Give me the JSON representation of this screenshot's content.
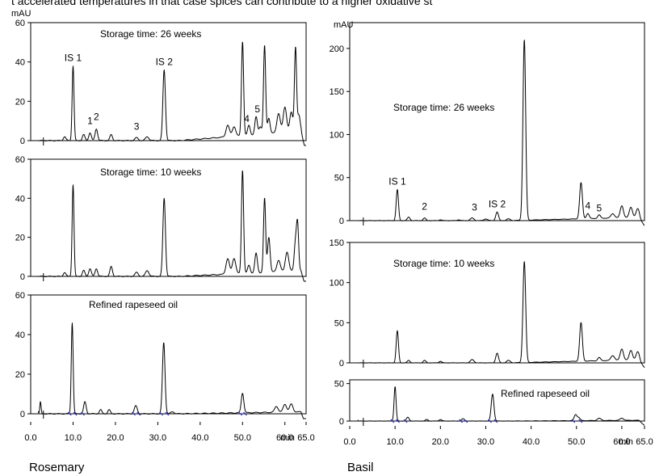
{
  "header_text": "t accelerated temperatures in that case spices can contribute to a higher oxidative st",
  "y_unit": "mAU",
  "x_unit": "min",
  "colors": {
    "trace": "#000000",
    "integration": "#2a2ad0",
    "frame": "#000000"
  },
  "chart_data": [
    {
      "type": "line",
      "group": "Rosemary",
      "panels": [
        {
          "title": "Storage time: 26 weeks",
          "ylim": [
            0,
            60
          ],
          "yticks": [
            "0",
            "20",
            "40",
            "60"
          ],
          "peak_labels": [
            {
              "text": "IS 1",
              "x": 10.0,
              "y": 38
            },
            {
              "text": "1",
              "x": 14.0,
              "y": 6
            },
            {
              "text": "2",
              "x": 15.5,
              "y": 8
            },
            {
              "text": "IS 2",
              "x": 31.5,
              "y": 36
            },
            {
              "text": "3",
              "x": 25.0,
              "y": 3
            },
            {
              "text": "4",
              "x": 51.0,
              "y": 7
            },
            {
              "text": "5",
              "x": 53.5,
              "y": 12
            }
          ],
          "peaks": [
            [
              8.0,
              2,
              0.3
            ],
            [
              10.0,
              38,
              0.22
            ],
            [
              12.5,
              3,
              0.3
            ],
            [
              14.0,
              4,
              0.3
            ],
            [
              15.5,
              6,
              0.3
            ],
            [
              19.0,
              3,
              0.3
            ],
            [
              25.0,
              1.5,
              0.4
            ],
            [
              27.5,
              2,
              0.4
            ],
            [
              31.5,
              36,
              0.3
            ],
            [
              46.5,
              6,
              0.4
            ],
            [
              48.0,
              5,
              0.4
            ],
            [
              50.0,
              48,
              0.25
            ],
            [
              51.5,
              5,
              0.3
            ],
            [
              53.2,
              9,
              0.3
            ],
            [
              54.2,
              4,
              0.3
            ],
            [
              55.2,
              45,
              0.25
            ],
            [
              56.2,
              8,
              0.3
            ],
            [
              58.5,
              10,
              0.4
            ],
            [
              60.0,
              13,
              0.4
            ],
            [
              61.5,
              10,
              0.35
            ],
            [
              62.5,
              43,
              0.25
            ],
            [
              63.3,
              8,
              0.3
            ]
          ],
          "baseline_rise": 5
        },
        {
          "title": "Storage time: 10 weeks",
          "ylim": [
            0,
            60
          ],
          "yticks": [
            "0",
            "20",
            "40",
            "60"
          ],
          "peak_labels": [],
          "peaks": [
            [
              8.0,
              2,
              0.3
            ],
            [
              10.0,
              47,
              0.22
            ],
            [
              12.5,
              3,
              0.3
            ],
            [
              14.0,
              4,
              0.3
            ],
            [
              15.5,
              4,
              0.3
            ],
            [
              19.0,
              5,
              0.3
            ],
            [
              25.0,
              2,
              0.4
            ],
            [
              27.5,
              3,
              0.4
            ],
            [
              31.5,
              40,
              0.3
            ],
            [
              46.5,
              8,
              0.4
            ],
            [
              48.0,
              8,
              0.4
            ],
            [
              50.0,
              53,
              0.25
            ],
            [
              51.5,
              4,
              0.3
            ],
            [
              53.2,
              10,
              0.3
            ],
            [
              55.2,
              38,
              0.25
            ],
            [
              56.2,
              18,
              0.3
            ],
            [
              58.5,
              6,
              0.4
            ],
            [
              60.5,
              10,
              0.4
            ],
            [
              62.5,
              15,
              0.3
            ],
            [
              63.0,
              22,
              0.25
            ]
          ],
          "baseline_rise": 3
        },
        {
          "title": "Refined rapeseed oil",
          "ylim": [
            0,
            60
          ],
          "yticks": [
            "0",
            "20",
            "40",
            "60"
          ],
          "peak_labels": [],
          "peaks": [
            [
              1.5,
              10,
              0.15
            ],
            [
              2.3,
              6,
              0.15
            ],
            [
              9.8,
              46,
              0.22
            ],
            [
              12.8,
              6,
              0.3
            ],
            [
              16.5,
              2,
              0.3
            ],
            [
              18.5,
              2,
              0.3
            ],
            [
              24.8,
              4,
              0.35
            ],
            [
              31.4,
              36,
              0.3
            ],
            [
              33.5,
              1,
              0.4
            ],
            [
              50.0,
              10,
              0.3
            ],
            [
              58.0,
              3,
              0.4
            ],
            [
              60.0,
              4,
              0.4
            ],
            [
              61.5,
              4,
              0.4
            ]
          ],
          "integration_marks": [
            9.2,
            10.5,
            12.3,
            24.3,
            25.5,
            30.8,
            32.2,
            49.5,
            50.6
          ],
          "baseline_rise": 1
        }
      ],
      "xlim": [
        0,
        65
      ],
      "xticks": [
        "0.0",
        "10.0",
        "20.0",
        "30.0",
        "40.0",
        "50.0",
        "60.0",
        "65.0"
      ]
    },
    {
      "type": "line",
      "group": "Basil",
      "panels": [
        {
          "title": "Storage time: 26 weeks",
          "ylim": [
            0,
            230
          ],
          "yticks": [
            "0",
            "50",
            "100",
            "150",
            "200"
          ],
          "peak_labels": [
            {
              "text": "IS 1",
              "x": 10.5,
              "y": 36
            },
            {
              "text": "2",
              "x": 16.5,
              "y": 7
            },
            {
              "text": "3",
              "x": 27.5,
              "y": 6
            },
            {
              "text": "IS 2",
              "x": 32.5,
              "y": 10
            },
            {
              "text": "4",
              "x": 52.5,
              "y": 8
            },
            {
              "text": "5",
              "x": 55.0,
              "y": 5
            }
          ],
          "peaks": [
            [
              10.5,
              36,
              0.25
            ],
            [
              13.0,
              4,
              0.3
            ],
            [
              16.5,
              3,
              0.3
            ],
            [
              20.0,
              1,
              0.3
            ],
            [
              24.0,
              1,
              0.3
            ],
            [
              27.0,
              3,
              0.4
            ],
            [
              30.0,
              2,
              0.4
            ],
            [
              32.5,
              10,
              0.3
            ],
            [
              35.0,
              2,
              0.4
            ],
            [
              38.5,
              210,
              0.3
            ],
            [
              51.0,
              42,
              0.3
            ],
            [
              52.5,
              6,
              0.3
            ],
            [
              55.0,
              4,
              0.3
            ],
            [
              58.0,
              5,
              0.4
            ],
            [
              60.0,
              14,
              0.35
            ],
            [
              62.0,
              12,
              0.35
            ],
            [
              63.5,
              10,
              0.35
            ]
          ],
          "baseline_rise": 4
        },
        {
          "title": "Storage time: 10 weeks",
          "ylim": [
            0,
            150
          ],
          "yticks": [
            "0",
            "50",
            "100",
            "150"
          ],
          "peak_labels": [],
          "peaks": [
            [
              10.5,
              40,
              0.25
            ],
            [
              13.0,
              3,
              0.3
            ],
            [
              16.5,
              3,
              0.3
            ],
            [
              20.0,
              2,
              0.3
            ],
            [
              27.0,
              4,
              0.4
            ],
            [
              32.5,
              12,
              0.3
            ],
            [
              35.0,
              3,
              0.4
            ],
            [
              38.5,
              126,
              0.3
            ],
            [
              51.0,
              48,
              0.3
            ],
            [
              55.0,
              4,
              0.3
            ],
            [
              58.0,
              6,
              0.4
            ],
            [
              60.0,
              14,
              0.35
            ],
            [
              62.0,
              12,
              0.35
            ],
            [
              63.5,
              10,
              0.35
            ]
          ],
          "baseline_rise": 4
        },
        {
          "title": "Refined rapeseed oil",
          "ylim": [
            0,
            55
          ],
          "yticks": [
            "0",
            "50"
          ],
          "peak_labels": [],
          "peaks": [
            [
              1.5,
              12,
              0.15
            ],
            [
              10.0,
              46,
              0.22
            ],
            [
              12.8,
              5,
              0.3
            ],
            [
              17.0,
              2,
              0.3
            ],
            [
              20.0,
              2,
              0.3
            ],
            [
              25.0,
              3,
              0.35
            ],
            [
              31.5,
              36,
              0.3
            ],
            [
              49.8,
              8,
              0.3
            ],
            [
              50.5,
              4,
              0.3
            ],
            [
              55.0,
              3,
              0.4
            ],
            [
              60.0,
              3,
              0.4
            ]
          ],
          "integration_marks": [
            9.4,
            10.6,
            12.3,
            24.5,
            25.6,
            30.9,
            32.2,
            49.3,
            50.9
          ],
          "baseline_rise": 1
        }
      ],
      "xlim": [
        0,
        65
      ],
      "xticks": [
        "0.0",
        "10.0",
        "20.0",
        "30.0",
        "40.0",
        "50.0",
        "60.0",
        "65.0"
      ]
    }
  ]
}
